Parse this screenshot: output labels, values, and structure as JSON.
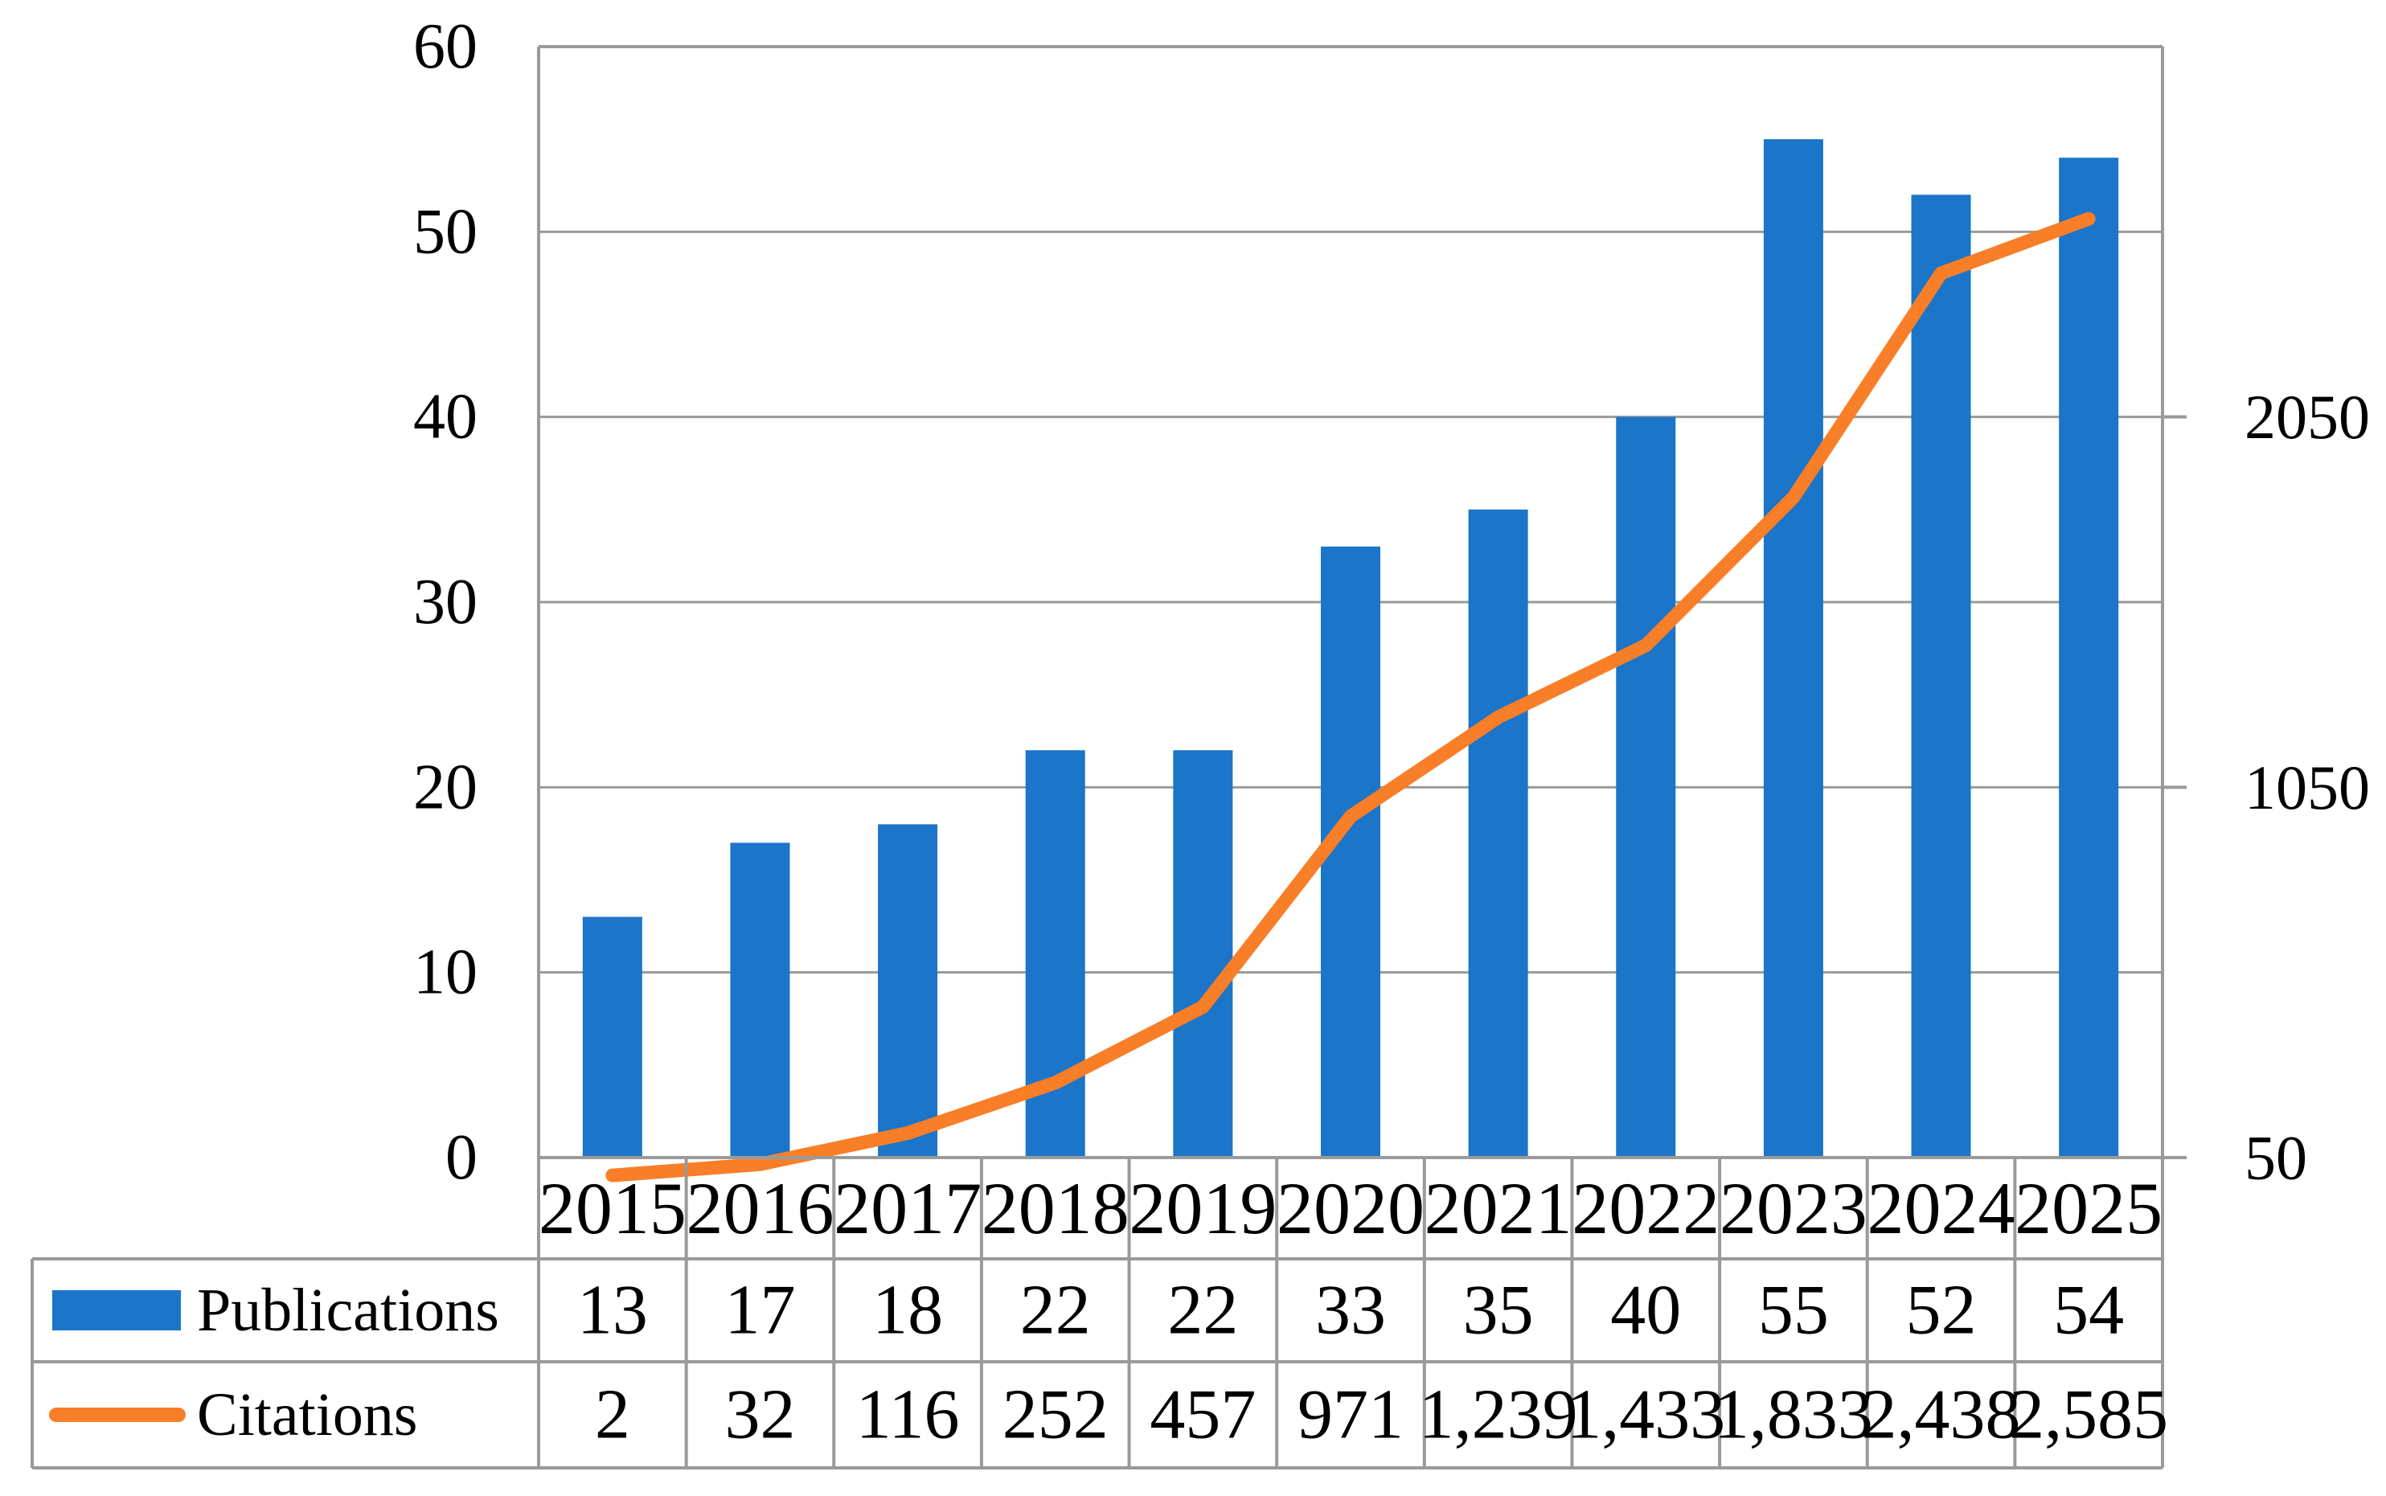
{
  "figure": {
    "background": "#FFFFFF"
  },
  "colors": {
    "bar": "#1B75C8",
    "line": "#F97E28",
    "grid": "#9A9A9A",
    "text": "#000000"
  },
  "chart_data": {
    "type": "combo-bar-line",
    "categories": [
      "2015",
      "2016",
      "2017",
      "2018",
      "2019",
      "2020",
      "2021",
      "2022",
      "2023",
      "2024",
      "2025"
    ],
    "series": [
      {
        "name": "Publications",
        "type": "bar",
        "axis": "left",
        "values": [
          13,
          17,
          18,
          22,
          22,
          33,
          35,
          40,
          55,
          52,
          54
        ],
        "display_values": [
          "13",
          "17",
          "18",
          "22",
          "22",
          "33",
          "35",
          "40",
          "55",
          "52",
          "54"
        ]
      },
      {
        "name": "Citations",
        "type": "line",
        "axis": "right",
        "values": [
          2,
          32,
          116,
          252,
          457,
          971,
          1239,
          1433,
          1833,
          2438,
          2585
        ],
        "display_values": [
          "2",
          "32",
          "116",
          "252",
          "457",
          "971",
          "1,239",
          "1,433",
          "1,833",
          "2,438",
          "2,585"
        ]
      }
    ],
    "left_axis": {
      "min": 0,
      "max": 60,
      "tick_values": [
        0,
        10,
        20,
        30,
        40,
        50,
        60
      ],
      "ticks": [
        "0",
        "10",
        "20",
        "30",
        "40",
        "50",
        "60"
      ]
    },
    "right_axis": {
      "tick_values": [
        50,
        1050,
        2050
      ],
      "ticks": [
        "50",
        "1050",
        "2050"
      ],
      "units_per_left_unit": 50,
      "note": "50 aligns with left 0, 1050 with left 20, 2050 with left 40"
    },
    "grid": "horizontal",
    "legend_position": "table-left-column",
    "legend": [
      "Publications",
      "Citations"
    ]
  }
}
